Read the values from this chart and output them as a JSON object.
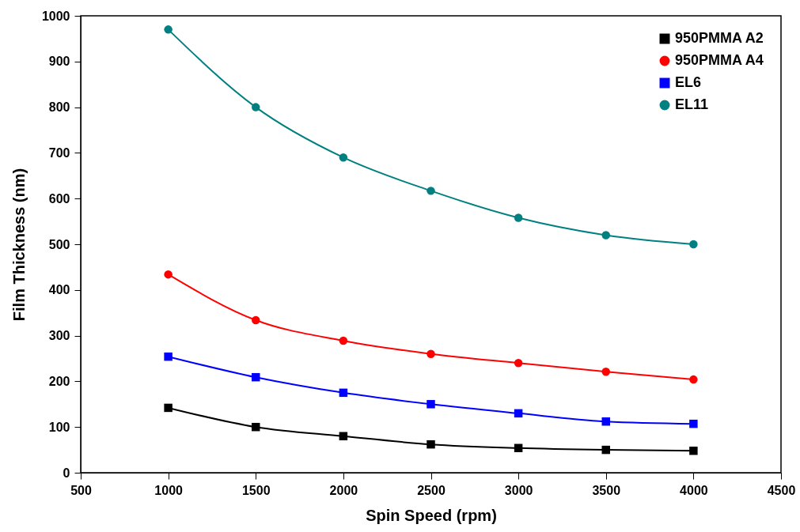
{
  "chart_data": {
    "type": "line",
    "xlabel": "Spin Speed (rpm)",
    "ylabel": "Film Thickness (nm)",
    "x": [
      1000,
      1500,
      2000,
      2500,
      3000,
      3500,
      4000
    ],
    "series": [
      {
        "name": "950PMMA A2",
        "color": "#000000",
        "marker": "square",
        "values": [
          142,
          100,
          80,
          62,
          54,
          50,
          48
        ]
      },
      {
        "name": "950PMMA A4",
        "color": "#ff0000",
        "marker": "circle",
        "values": [
          434,
          334,
          289,
          260,
          240,
          221,
          204
        ]
      },
      {
        "name": "EL6",
        "color": "#0000ff",
        "marker": "square",
        "values": [
          254,
          209,
          175,
          150,
          130,
          112,
          107
        ]
      },
      {
        "name": "EL11",
        "color": "#008080",
        "marker": "circle",
        "values": [
          970,
          800,
          690,
          617,
          558,
          520,
          500
        ]
      }
    ],
    "xlim": [
      500,
      4500
    ],
    "xticks": [
      500,
      1000,
      1500,
      2000,
      2500,
      3000,
      3500,
      4000,
      4500
    ],
    "ylim": [
      0,
      1000
    ],
    "yticks": [
      0,
      100,
      200,
      300,
      400,
      500,
      600,
      700,
      800,
      900,
      1000
    ],
    "grid": false,
    "legend": "top right"
  }
}
